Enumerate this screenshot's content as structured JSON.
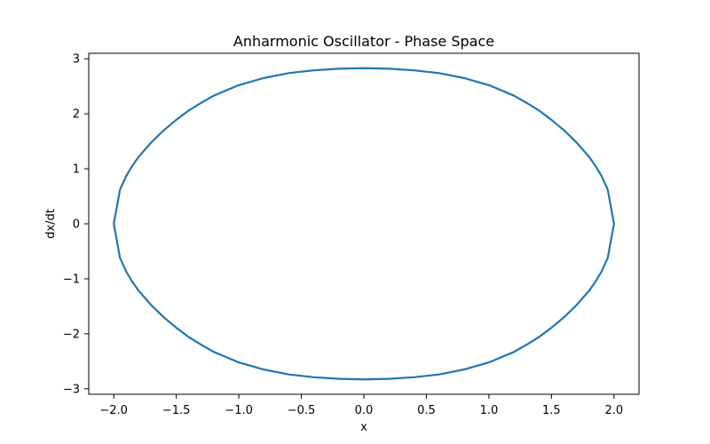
{
  "chart_data": {
    "type": "line",
    "title": "Anharmonic Oscillator - Phase Space",
    "xlabel": "x",
    "ylabel": "dx/dt",
    "xlim": [
      -2.2,
      2.2
    ],
    "ylim": [
      -3.1,
      3.1
    ],
    "xticks": [
      -2.0,
      -1.5,
      -1.0,
      -0.5,
      0.0,
      0.5,
      1.0,
      1.5,
      2.0
    ],
    "xtick_labels": [
      "−2.0",
      "−1.5",
      "−1.0",
      "−0.5",
      "0.0",
      "0.5",
      "1.0",
      "1.5",
      "2.0"
    ],
    "yticks": [
      -3,
      -2,
      -1,
      0,
      1,
      2,
      3
    ],
    "ytick_labels": [
      "−3",
      "−2",
      "−1",
      "0",
      "1",
      "2",
      "3"
    ],
    "grid": false,
    "series": [
      {
        "color": "#1f77b4",
        "x": [
          2.0,
          1.95,
          1.9,
          1.85,
          1.8,
          1.7,
          1.6,
          1.5,
          1.4,
          1.3,
          1.2,
          1.0,
          0.8,
          0.6,
          0.4,
          0.2,
          0.0,
          -0.2,
          -0.4,
          -0.6,
          -0.8,
          -1.0,
          -1.2,
          -1.3,
          -1.4,
          -1.5,
          -1.6,
          -1.7,
          -1.8,
          -1.85,
          -1.9,
          -1.95,
          -2.0,
          -1.95,
          -1.9,
          -1.85,
          -1.8,
          -1.7,
          -1.6,
          -1.5,
          -1.4,
          -1.3,
          -1.2,
          -1.0,
          -0.8,
          -0.6,
          -0.4,
          -0.2,
          0.0,
          0.2,
          0.4,
          0.6,
          0.8,
          1.0,
          1.2,
          1.3,
          1.4,
          1.5,
          1.6,
          1.7,
          1.8,
          1.85,
          1.9,
          1.95,
          2.0
        ],
        "y": [
          0.0,
          0.62,
          0.87,
          1.06,
          1.22,
          1.48,
          1.7,
          1.89,
          2.06,
          2.2,
          2.33,
          2.52,
          2.65,
          2.74,
          2.79,
          2.82,
          2.83,
          2.82,
          2.79,
          2.74,
          2.65,
          2.52,
          2.33,
          2.2,
          2.06,
          1.89,
          1.7,
          1.48,
          1.22,
          1.06,
          0.87,
          0.62,
          0.0,
          -0.62,
          -0.87,
          -1.06,
          -1.22,
          -1.48,
          -1.7,
          -1.89,
          -2.06,
          -2.2,
          -2.33,
          -2.52,
          -2.65,
          -2.74,
          -2.79,
          -2.82,
          -2.83,
          -2.82,
          -2.79,
          -2.74,
          -2.65,
          -2.52,
          -2.33,
          -2.2,
          -2.06,
          -1.89,
          -1.7,
          -1.48,
          -1.22,
          -1.06,
          -0.87,
          -0.62,
          0.0
        ]
      }
    ]
  }
}
